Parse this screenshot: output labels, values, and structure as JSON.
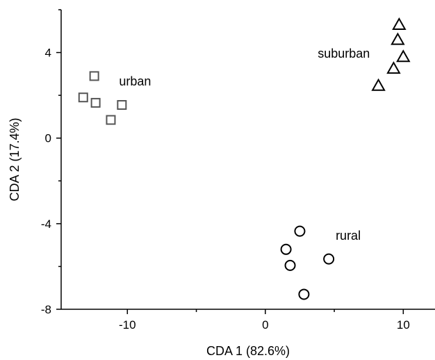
{
  "chart_data": {
    "type": "scatter",
    "title": "",
    "xlabel": "CDA 1 (82.6%)",
    "ylabel": "CDA 2 (17.4%)",
    "xlim": [
      -14.8,
      12.3
    ],
    "ylim": [
      -8,
      6
    ],
    "x_ticks": [
      -10,
      0,
      10
    ],
    "x_tick_labels": [
      "-10",
      "0",
      "10"
    ],
    "y_ticks": [
      -8,
      -4,
      0,
      4
    ],
    "y_tick_labels": [
      "-8",
      "-4",
      "0",
      "4"
    ],
    "grid": false,
    "legend": "none",
    "series": [
      {
        "name": "urban",
        "marker": "square",
        "color": "#555555",
        "points": [
          {
            "x": -12.4,
            "y": 2.9
          },
          {
            "x": -13.2,
            "y": 1.9
          },
          {
            "x": -12.3,
            "y": 1.65
          },
          {
            "x": -10.4,
            "y": 1.55
          },
          {
            "x": -11.2,
            "y": 0.85
          }
        ]
      },
      {
        "name": "suburban",
        "marker": "triangle",
        "color": "#000000",
        "points": [
          {
            "x": 9.7,
            "y": 5.3
          },
          {
            "x": 9.6,
            "y": 4.6
          },
          {
            "x": 10.0,
            "y": 3.8
          },
          {
            "x": 9.3,
            "y": 3.25
          },
          {
            "x": 8.2,
            "y": 2.45
          }
        ]
      },
      {
        "name": "rural",
        "marker": "circle",
        "color": "#000000",
        "points": [
          {
            "x": 2.5,
            "y": -4.35
          },
          {
            "x": 1.5,
            "y": -5.2
          },
          {
            "x": 4.6,
            "y": -5.65
          },
          {
            "x": 1.8,
            "y": -5.95
          },
          {
            "x": 2.8,
            "y": -7.3
          }
        ]
      }
    ],
    "annotations": [
      {
        "text": "urban",
        "x": -10.6,
        "y": 2.65
      },
      {
        "text": "suburban",
        "x": 3.8,
        "y": 3.95
      },
      {
        "text": "rural",
        "x": 5.1,
        "y": -4.55
      }
    ]
  }
}
